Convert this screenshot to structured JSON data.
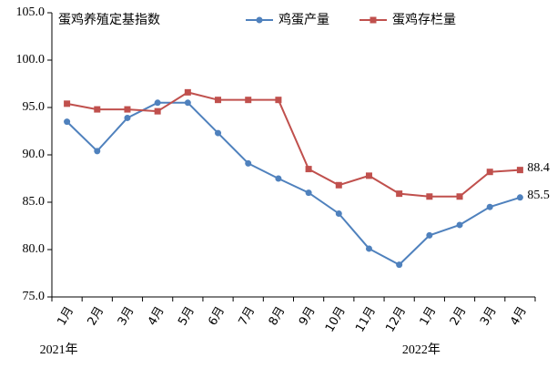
{
  "chart_data": {
    "type": "line",
    "title": "蛋鸡养殖定基指数",
    "categories": [
      "1月",
      "2月",
      "3月",
      "4月",
      "5月",
      "6月",
      "7月",
      "8月",
      "9月",
      "10月",
      "11月",
      "12月",
      "1月",
      "2月",
      "3月",
      "4月"
    ],
    "year_labels": [
      "2021年",
      "2022年"
    ],
    "series": [
      {
        "name": "鸡蛋产量",
        "color": "#4f81bd",
        "marker": "circle",
        "values": [
          93.5,
          90.4,
          93.9,
          95.5,
          95.5,
          92.3,
          89.1,
          87.5,
          86.0,
          83.8,
          80.1,
          78.4,
          81.5,
          82.6,
          84.5,
          85.5
        ]
      },
      {
        "name": "蛋鸡存栏量",
        "color": "#c0504d",
        "marker": "square",
        "values": [
          95.4,
          94.8,
          94.8,
          94.6,
          96.6,
          95.8,
          95.8,
          95.8,
          88.5,
          86.8,
          87.8,
          85.9,
          85.6,
          85.6,
          88.2,
          88.4
        ]
      }
    ],
    "ylim": [
      75,
      105
    ],
    "yticks": [
      {
        "value": 75,
        "label": "75.0"
      },
      {
        "value": 80,
        "label": "80.0"
      },
      {
        "value": 85,
        "label": "85.0"
      },
      {
        "value": 90,
        "label": "90.0"
      },
      {
        "value": 95,
        "label": "95.0"
      },
      {
        "value": 100,
        "label": "100.0"
      },
      {
        "value": 105,
        "label": "105.0"
      }
    ],
    "grid": false,
    "legend": "top"
  }
}
